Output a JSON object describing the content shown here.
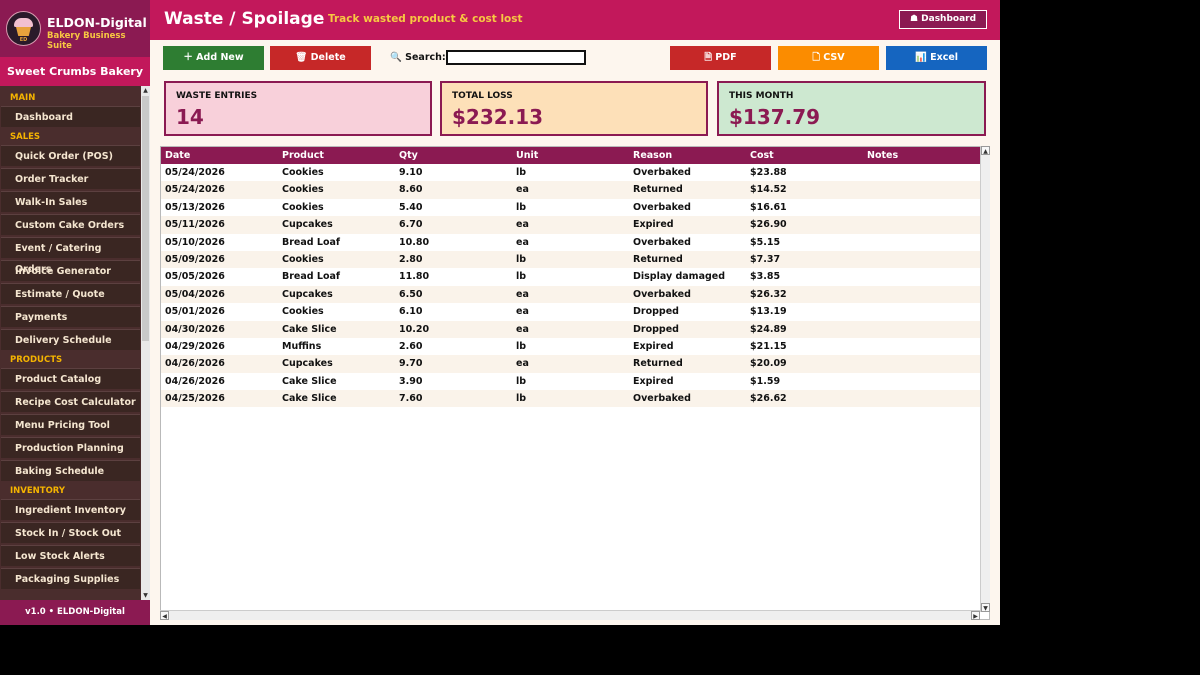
{
  "brand": {
    "name": "ELDON-Digital",
    "subtitle": "Bakery Business Suite",
    "logo_text": "ED"
  },
  "bakery_name": "Sweet Crumbs Bakery",
  "sidebar": {
    "sections": [
      {
        "title": "MAIN",
        "items": [
          "Dashboard"
        ]
      },
      {
        "title": "SALES",
        "items": [
          "Quick Order (POS)",
          "Order Tracker",
          "Walk-In Sales",
          "Custom Cake Orders",
          "Event / Catering Orders",
          "Invoice Generator",
          "Estimate / Quote",
          "Payments",
          "Delivery Schedule"
        ]
      },
      {
        "title": "PRODUCTS",
        "items": [
          "Product Catalog",
          "Recipe Cost Calculator",
          "Menu Pricing Tool",
          "Production Planning",
          "Baking Schedule"
        ]
      },
      {
        "title": "INVENTORY",
        "items": [
          "Ingredient Inventory",
          "Stock In / Stock Out",
          "Low Stock Alerts",
          "Packaging Supplies"
        ]
      }
    ],
    "version": "v1.0  •  ELDON-Digital"
  },
  "header": {
    "title": "Waste / Spoilage",
    "subtitle": "Track wasted product & cost lost",
    "dashboard_button": "☗  Dashboard"
  },
  "toolbar": {
    "add_label": "＋  Add New",
    "delete_label": "🗑  Delete",
    "search_label": "🔍  Search:",
    "search_value": "",
    "pdf_label": "🗎  PDF",
    "csv_label": "🗋  CSV",
    "excel_label": "📊  Excel"
  },
  "stats": {
    "entries_label": "WASTE ENTRIES",
    "entries_value": "14",
    "loss_label": "TOTAL LOSS",
    "loss_value": "$232.13",
    "month_label": "THIS MONTH",
    "month_value": "$137.79"
  },
  "colors": {
    "header": "#c2185b",
    "brand": "#8b1a52",
    "sidebar": "#4a2d2d",
    "accent_gold": "#f7c842",
    "add": "#2e7d32",
    "delete": "#c62828",
    "pdf": "#c62828",
    "csv": "#fb8c00",
    "excel": "#1565c0",
    "card_pink": "#f8d0da",
    "card_orange": "#fde0b8",
    "card_green": "#cde8d0"
  },
  "table": {
    "columns": [
      "Date",
      "Product",
      "Qty",
      "Unit",
      "Reason",
      "Cost",
      "Notes"
    ],
    "rows": [
      [
        "05/24/2026",
        "Cookies",
        "9.10",
        "lb",
        "Overbaked",
        "$23.88",
        ""
      ],
      [
        "05/24/2026",
        "Cookies",
        "8.60",
        "ea",
        "Returned",
        "$14.52",
        ""
      ],
      [
        "05/13/2026",
        "Cookies",
        "5.40",
        "lb",
        "Overbaked",
        "$16.61",
        ""
      ],
      [
        "05/11/2026",
        "Cupcakes",
        "6.70",
        "ea",
        "Expired",
        "$26.90",
        ""
      ],
      [
        "05/10/2026",
        "Bread Loaf",
        "10.80",
        "ea",
        "Overbaked",
        "$5.15",
        ""
      ],
      [
        "05/09/2026",
        "Cookies",
        "2.80",
        "lb",
        "Returned",
        "$7.37",
        ""
      ],
      [
        "05/05/2026",
        "Bread Loaf",
        "11.80",
        "lb",
        "Display damaged",
        "$3.85",
        ""
      ],
      [
        "05/04/2026",
        "Cupcakes",
        "6.50",
        "ea",
        "Overbaked",
        "$26.32",
        ""
      ],
      [
        "05/01/2026",
        "Cookies",
        "6.10",
        "ea",
        "Dropped",
        "$13.19",
        ""
      ],
      [
        "04/30/2026",
        "Cake Slice",
        "10.20",
        "ea",
        "Dropped",
        "$24.89",
        ""
      ],
      [
        "04/29/2026",
        "Muffins",
        "2.60",
        "lb",
        "Expired",
        "$21.15",
        ""
      ],
      [
        "04/26/2026",
        "Cupcakes",
        "9.70",
        "ea",
        "Returned",
        "$20.09",
        ""
      ],
      [
        "04/26/2026",
        "Cake Slice",
        "3.90",
        "lb",
        "Expired",
        "$1.59",
        ""
      ],
      [
        "04/25/2026",
        "Cake Slice",
        "7.60",
        "lb",
        "Overbaked",
        "$26.62",
        ""
      ]
    ]
  }
}
